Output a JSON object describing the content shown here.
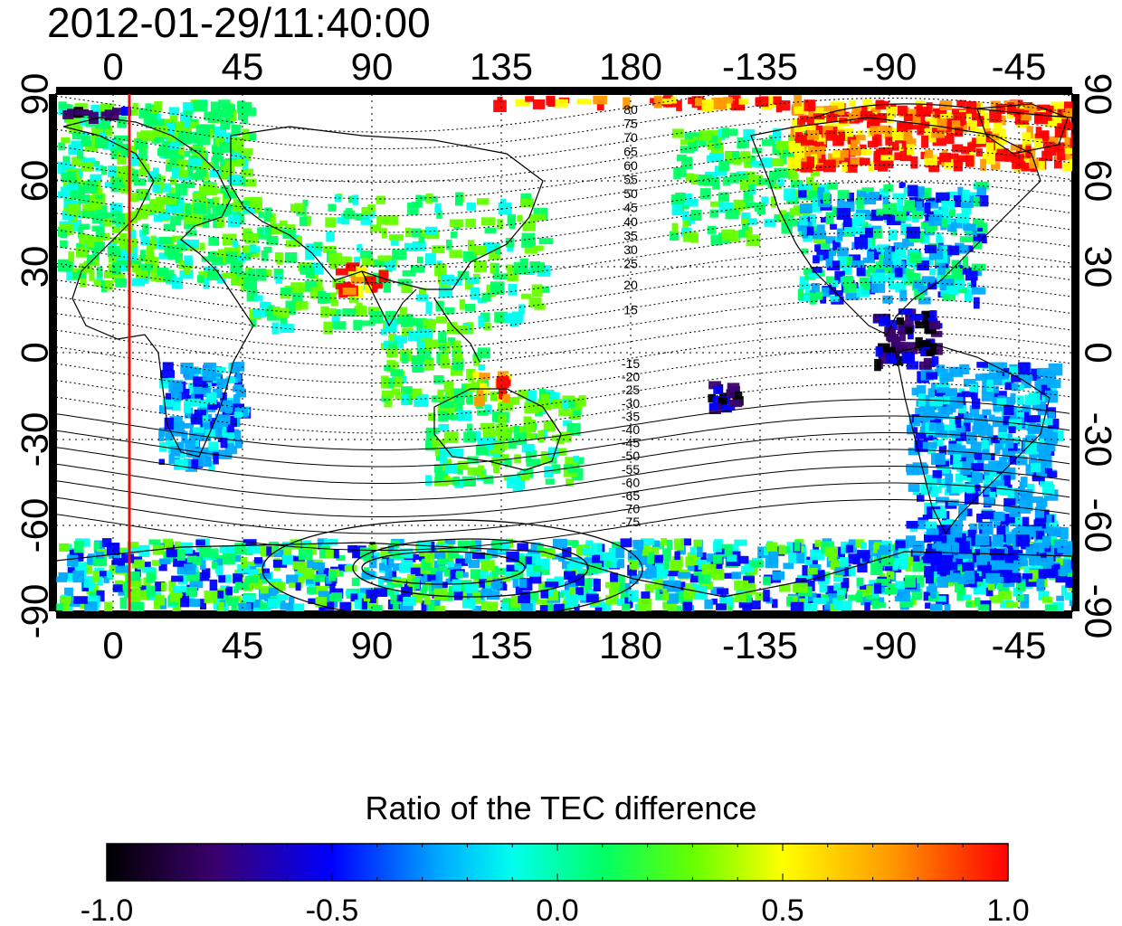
{
  "title": "2012-01-29/11:40:00",
  "map": {
    "x_ticks_top": [
      "0",
      "45",
      "90",
      "135",
      "180",
      "-135",
      "-90",
      "-45"
    ],
    "x_ticks_bottom": [
      "0",
      "45",
      "90",
      "135",
      "180",
      "-135",
      "-90",
      "-45"
    ],
    "y_ticks_left": [
      "90",
      "60",
      "30",
      "0",
      "-30",
      "-60",
      "-90"
    ],
    "y_ticks_right": [
      "90",
      "60",
      "30",
      "0",
      "-30",
      "-60",
      "-90"
    ],
    "contour_labels_north": [
      "80",
      "75",
      "70",
      "65",
      "60",
      "55",
      "50",
      "45",
      "40",
      "35",
      "30",
      "25",
      "20",
      "15"
    ],
    "contour_labels_south": [
      "-15",
      "-20",
      "-25",
      "-30",
      "-35",
      "-40",
      "-45",
      "-50",
      "-55",
      "-60",
      "-65",
      "-70",
      "-75"
    ],
    "marker_line_color": "#e01010"
  },
  "colorbar": {
    "title": "Ratio of the TEC difference",
    "tick_labels": [
      "-1.0",
      "-0.5",
      "0.0",
      "0.5",
      "1.0"
    ],
    "min": -1.0,
    "max": 1.0,
    "colors": [
      "#000000",
      "#3a006e",
      "#0000ff",
      "#00aaff",
      "#00ffee",
      "#00ff66",
      "#66ff00",
      "#ffff00",
      "#ff9900",
      "#ff0000"
    ]
  }
}
